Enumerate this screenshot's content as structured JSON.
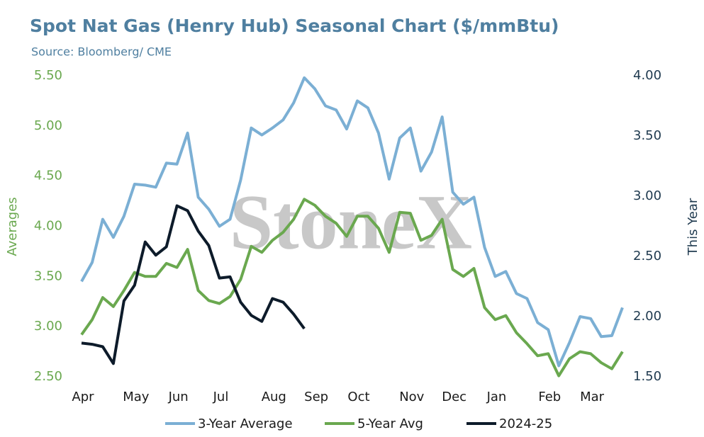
{
  "chart_data": {
    "type": "line",
    "title": "Spot Nat Gas (Henry Hub) Seasonal Chart ($/mmBtu)",
    "subtitle": "Source: Bloomberg/ CME",
    "watermark": "StoneX",
    "y_label": "Averages",
    "y2_label": "This Year",
    "categories": [
      "Apr",
      null,
      null,
      null,
      null,
      "May",
      null,
      null,
      null,
      "Jun",
      null,
      null,
      null,
      "Jul",
      null,
      null,
      null,
      null,
      "Aug",
      null,
      null,
      null,
      "Sep",
      null,
      null,
      null,
      "Oct",
      null,
      null,
      null,
      null,
      "Nov",
      null,
      null,
      null,
      "Dec",
      null,
      null,
      null,
      "Jan",
      null,
      null,
      null,
      null,
      "Feb",
      null,
      null,
      null,
      "Mar",
      null,
      null,
      null
    ],
    "ylim": [
      2.5,
      5.5
    ],
    "yticks": [
      {
        "value": 2.5,
        "label": "2.50"
      },
      {
        "value": 3,
        "label": "3.00"
      },
      {
        "value": 3.5,
        "label": "3.50"
      },
      {
        "value": 4,
        "label": "4.00"
      },
      {
        "value": 4.5,
        "label": "4.50"
      },
      {
        "value": 5,
        "label": "5.00"
      },
      {
        "value": 5.5,
        "label": "5.50"
      }
    ],
    "y2lim": [
      1.5,
      4
    ],
    "y2ticks": [
      {
        "value": 1.5,
        "label": "1.50"
      },
      {
        "value": 2,
        "label": "2.00"
      },
      {
        "value": 2.5,
        "label": "2.50"
      },
      {
        "value": 3,
        "label": "3.00"
      },
      {
        "value": 3.5,
        "label": "3.50"
      },
      {
        "value": 4,
        "label": "4.00"
      }
    ],
    "legend": "bottom",
    "series": [
      {
        "name": "3-Year Average",
        "color": "#7bafd4",
        "values": [
          3.45,
          3.64,
          4.07,
          3.89,
          4.1,
          4.42,
          4.41,
          4.39,
          4.63,
          4.62,
          4.93,
          4.29,
          4.17,
          4.0,
          4.07,
          4.46,
          4.98,
          4.91,
          4.98,
          5.06,
          5.23,
          5.48,
          5.37,
          5.2,
          5.16,
          4.97,
          5.25,
          5.18,
          4.93,
          4.47,
          4.88,
          4.98,
          4.55,
          4.74,
          5.09,
          4.34,
          4.22,
          4.29,
          3.79,
          3.5,
          3.55,
          3.33,
          3.28,
          3.04,
          2.97,
          2.61,
          2.84,
          3.1,
          3.08,
          2.9,
          2.91,
          3.19
        ]
      },
      {
        "name": "5-Year Avg",
        "color": "#6aa84f",
        "values": [
          2.92,
          3.07,
          3.29,
          3.2,
          3.36,
          3.54,
          3.5,
          3.5,
          3.63,
          3.59,
          3.77,
          3.36,
          3.26,
          3.23,
          3.3,
          3.47,
          3.8,
          3.74,
          3.86,
          3.94,
          4.07,
          4.27,
          4.21,
          4.1,
          4.03,
          3.9,
          4.1,
          4.1,
          3.98,
          3.74,
          4.14,
          4.13,
          3.86,
          3.91,
          4.07,
          3.57,
          3.5,
          3.58,
          3.19,
          3.07,
          3.11,
          2.94,
          2.83,
          2.71,
          2.73,
          2.51,
          2.68,
          2.75,
          2.73,
          2.64,
          2.58,
          2.75
        ]
      },
      {
        "name": "2024-25",
        "color": "#0d1b2a",
        "axis": "y2",
        "values": [
          1.78,
          1.77,
          1.75,
          1.61,
          2.13,
          2.26,
          2.62,
          2.51,
          2.58,
          2.92,
          2.88,
          2.71,
          2.59,
          2.32,
          2.33,
          2.12,
          2.01,
          1.96,
          2.15,
          2.12,
          2.02,
          1.9,
          null,
          null,
          null,
          null,
          null,
          null,
          null,
          null,
          null,
          null,
          null,
          null,
          null,
          null,
          null,
          null,
          null,
          null,
          null,
          null,
          null,
          null,
          null,
          null,
          null,
          null,
          null,
          null,
          null,
          null
        ]
      }
    ]
  }
}
